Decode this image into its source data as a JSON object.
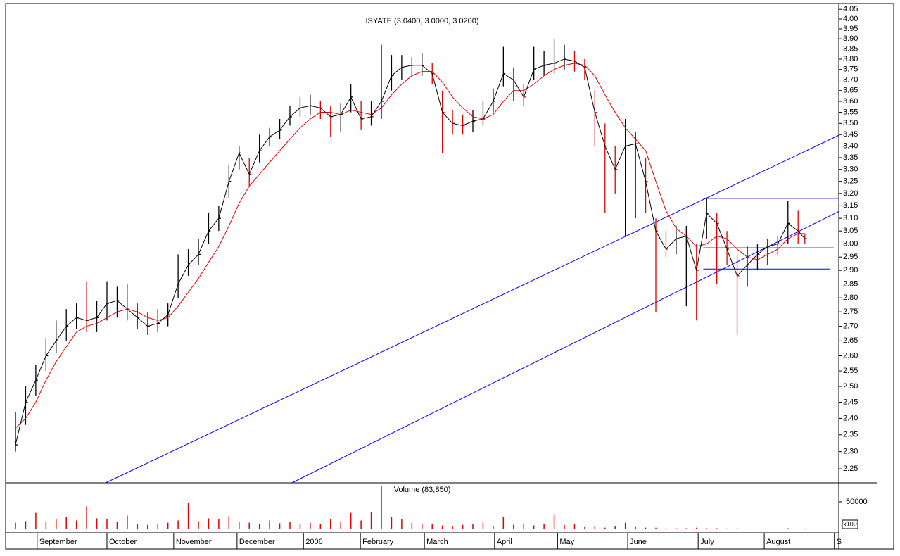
{
  "chart_data": {
    "type": "ohlc",
    "title": "ISYATE (3.0400, 3.0000, 3.0200)",
    "log_scale": true,
    "xlim": [
      0,
      243
    ],
    "ylim": [
      2.21,
      4.08
    ],
    "xticks": [
      {
        "value": 6.4,
        "label": "September"
      },
      {
        "value": 27,
        "label": "October"
      },
      {
        "value": 46.7,
        "label": "November"
      },
      {
        "value": 65.4,
        "label": "December"
      },
      {
        "value": 85,
        "label": "2006"
      },
      {
        "value": 101.8,
        "label": "February"
      },
      {
        "value": 120.7,
        "label": "March"
      },
      {
        "value": 141.4,
        "label": "April"
      },
      {
        "value": 160,
        "label": "May"
      },
      {
        "value": 180.7,
        "label": "June"
      },
      {
        "value": 201.5,
        "label": "July"
      },
      {
        "value": 221,
        "label": "August"
      },
      {
        "value": 241.7,
        "label": "S"
      }
    ],
    "yticks": [
      4.05,
      {
        "value": 4,
        "label": "4.00"
      },
      3.95,
      {
        "value": 3.9,
        "label": "3.90"
      },
      3.85,
      {
        "value": 3.8,
        "label": "3.80"
      },
      3.75,
      {
        "value": 3.7,
        "label": "3.70"
      },
      3.65,
      {
        "value": 3.6,
        "label": "3.60"
      },
      3.55,
      {
        "value": 3.5,
        "label": "3.50"
      },
      3.45,
      {
        "value": 3.4,
        "label": "3.40"
      },
      3.35,
      {
        "value": 3.3,
        "label": "3.30"
      },
      3.25,
      {
        "value": 3.2,
        "label": "3.20"
      },
      3.15,
      {
        "value": 3.1,
        "label": "3.10"
      },
      3.05,
      {
        "value": 3,
        "label": "3.00"
      },
      2.95,
      {
        "value": 2.9,
        "label": "2.90"
      },
      2.85,
      {
        "value": 2.8,
        "label": "2.80"
      },
      2.75,
      {
        "value": 2.7,
        "label": "2.70"
      },
      2.65,
      {
        "value": 2.6,
        "label": "2.60"
      },
      2.55,
      {
        "value": 2.5,
        "label": "2.50"
      },
      2.45,
      {
        "value": 2.4,
        "label": "2.40"
      },
      2.35,
      {
        "value": 2.3,
        "label": "2.30"
      },
      2.25
    ],
    "up_color": "#000000",
    "down_color": "#e00000",
    "x": [
      0,
      3,
      6,
      9,
      12,
      15,
      18,
      21,
      24,
      27,
      30,
      33,
      36,
      39,
      42,
      45,
      48,
      51,
      54,
      57,
      60,
      63,
      66,
      69,
      72,
      75,
      78,
      81,
      84,
      87,
      90,
      93,
      96,
      99,
      102,
      105,
      108,
      111,
      114,
      117,
      120,
      123,
      126,
      129,
      132,
      135,
      138,
      141,
      144,
      147,
      150,
      153,
      156,
      159,
      162,
      165,
      168,
      171,
      174,
      177,
      180,
      183,
      186,
      189,
      192,
      195,
      198,
      201,
      204,
      207,
      210,
      213,
      216,
      219,
      222,
      225,
      228,
      231,
      233
    ],
    "high": [
      2.42,
      2.5,
      2.57,
      2.66,
      2.72,
      2.76,
      2.78,
      2.86,
      2.79,
      2.86,
      2.84,
      2.85,
      2.78,
      2.75,
      2.76,
      2.78,
      2.96,
      2.98,
      3.02,
      3.12,
      3.15,
      3.32,
      3.4,
      3.35,
      3.45,
      3.48,
      3.52,
      3.58,
      3.62,
      3.63,
      3.6,
      3.58,
      3.59,
      3.68,
      3.6,
      3.6,
      3.87,
      3.82,
      3.82,
      3.81,
      3.83,
      3.78,
      3.65,
      3.56,
      3.54,
      3.56,
      3.6,
      3.66,
      3.86,
      3.76,
      3.68,
      3.86,
      3.84,
      3.9,
      3.87,
      3.84,
      3.8,
      3.65,
      3.5,
      3.4,
      3.52,
      3.46,
      3.35,
      3.1,
      3.05,
      3.07,
      3.07,
      3.0,
      3.18,
      3.12,
      3.05,
      2.96,
      2.99,
      3.0,
      3.02,
      3.03,
      3.17,
      3.13,
      3.04
    ],
    "low": [
      2.3,
      2.38,
      2.47,
      2.55,
      2.61,
      2.65,
      2.69,
      2.68,
      2.68,
      2.72,
      2.73,
      2.72,
      2.69,
      2.67,
      2.68,
      2.7,
      2.8,
      2.88,
      2.92,
      3.0,
      3.05,
      3.18,
      3.3,
      3.23,
      3.33,
      3.4,
      3.43,
      3.49,
      3.53,
      3.54,
      3.52,
      3.44,
      3.46,
      3.55,
      3.47,
      3.49,
      3.52,
      3.65,
      3.7,
      3.72,
      3.72,
      3.68,
      3.37,
      3.45,
      3.45,
      3.46,
      3.49,
      3.55,
      3.67,
      3.6,
      3.58,
      3.7,
      3.72,
      3.73,
      3.75,
      3.74,
      3.7,
      3.4,
      3.12,
      3.2,
      3.03,
      3.1,
      3.12,
      2.75,
      2.95,
      2.96,
      2.77,
      2.72,
      3.02,
      2.85,
      2.92,
      2.67,
      2.84,
      2.9,
      2.92,
      2.96,
      3.0,
      3.0,
      3.0
    ],
    "close": [
      2.32,
      2.45,
      2.52,
      2.6,
      2.65,
      2.7,
      2.73,
      2.72,
      2.73,
      2.78,
      2.79,
      2.76,
      2.73,
      2.7,
      2.71,
      2.74,
      2.85,
      2.92,
      2.96,
      3.05,
      3.1,
      3.25,
      3.37,
      3.28,
      3.38,
      3.44,
      3.47,
      3.53,
      3.57,
      3.58,
      3.57,
      3.53,
      3.54,
      3.62,
      3.52,
      3.53,
      3.6,
      3.72,
      3.76,
      3.77,
      3.77,
      3.73,
      3.55,
      3.5,
      3.49,
      3.51,
      3.52,
      3.6,
      3.73,
      3.7,
      3.62,
      3.75,
      3.77,
      3.78,
      3.8,
      3.79,
      3.76,
      3.55,
      3.4,
      3.3,
      3.4,
      3.41,
      3.25,
      3.05,
      2.98,
      3.02,
      3.03,
      2.9,
      3.12,
      3.08,
      2.98,
      2.88,
      2.92,
      2.96,
      2.99,
      3.0,
      3.08,
      3.05,
      3.02
    ],
    "close_color": "#000000",
    "ma": {
      "color": "#e00000",
      "values": [
        2.37,
        2.4,
        2.45,
        2.52,
        2.58,
        2.63,
        2.68,
        2.7,
        2.71,
        2.73,
        2.75,
        2.76,
        2.75,
        2.73,
        2.72,
        2.73,
        2.77,
        2.82,
        2.87,
        2.93,
        2.99,
        3.07,
        3.16,
        3.23,
        3.28,
        3.33,
        3.38,
        3.43,
        3.48,
        3.52,
        3.55,
        3.55,
        3.54,
        3.56,
        3.55,
        3.54,
        3.57,
        3.63,
        3.68,
        3.72,
        3.74,
        3.74,
        3.69,
        3.62,
        3.57,
        3.53,
        3.52,
        3.54,
        3.6,
        3.65,
        3.65,
        3.68,
        3.72,
        3.75,
        3.77,
        3.78,
        3.77,
        3.72,
        3.63,
        3.55,
        3.48,
        3.43,
        3.38,
        3.25,
        3.13,
        3.06,
        3.03,
        2.99,
        3.0,
        3.03,
        3.02,
        2.98,
        2.95,
        2.94,
        2.96,
        2.98,
        3.02,
        3.04,
        3.04
      ]
    },
    "trendline_color": "#0000ff",
    "trendlines": [
      {
        "x": [
          26.6,
          243
        ],
        "y": [
          2.21,
          3.447
        ]
      },
      {
        "x": [
          81.6,
          243
        ],
        "y": [
          2.21,
          3.127
        ]
      },
      {
        "x": [
          203,
          243
        ],
        "y": [
          3.18,
          3.18
        ]
      },
      {
        "x": [
          203,
          241.5
        ],
        "y": [
          2.985,
          2.985
        ]
      },
      {
        "x": [
          203,
          240.5
        ],
        "y": [
          2.905,
          2.905
        ]
      }
    ],
    "volume": {
      "title": "Volume (83,850)",
      "unit": "x100",
      "color": "#e00000",
      "ylim": [
        0,
        82000
      ],
      "yticks": [
        50000
      ],
      "values": [
        12000,
        15000,
        30000,
        14000,
        18000,
        22000,
        16000,
        42000,
        20000,
        18000,
        14000,
        25000,
        10000,
        8000,
        9000,
        12000,
        16000,
        48000,
        15000,
        20000,
        18000,
        24000,
        14000,
        12000,
        9000,
        16000,
        11000,
        13000,
        10000,
        12000,
        9000,
        18000,
        14000,
        30000,
        16000,
        32000,
        78000,
        22000,
        18000,
        12000,
        9000,
        10000,
        7000,
        6000,
        8000,
        9000,
        12000,
        6000,
        22000,
        8000,
        10000,
        7000,
        9000,
        26000,
        8000,
        10000,
        4000,
        6000,
        3000,
        5000,
        12000,
        4000,
        3000,
        3000,
        2000,
        2000,
        2000,
        3000,
        2000,
        2000,
        1500,
        2000,
        1500,
        1000,
        1000,
        1000,
        2000,
        1000,
        1500
      ]
    }
  }
}
